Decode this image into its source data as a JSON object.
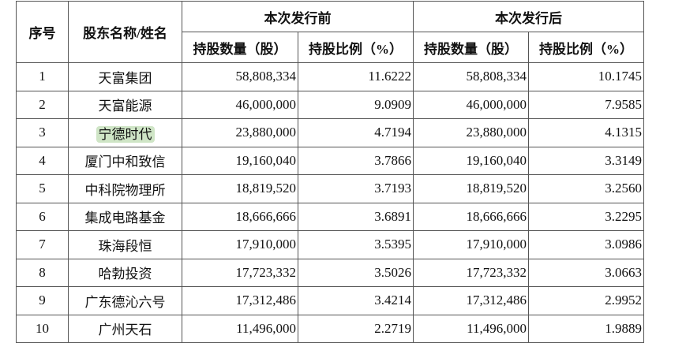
{
  "table": {
    "headers": {
      "seq": "序号",
      "name": "股东名称/姓名",
      "groups": [
        "本次发行前",
        "本次发行后"
      ],
      "sub": [
        "持股数量（股）",
        "持股比例（%）",
        "持股数量（股）",
        "持股比例（%）"
      ]
    },
    "rows": [
      [
        "1",
        "天富集团",
        "58,808,334",
        "11.6222",
        "58,808,334",
        "10.1745"
      ],
      [
        "2",
        "天富能源",
        "46,000,000",
        "9.0909",
        "46,000,000",
        "7.9585"
      ],
      [
        "3",
        "宁德时代",
        "23,880,000",
        "4.7194",
        "23,880,000",
        "4.1315"
      ],
      [
        "4",
        "厦门中和致信",
        "19,160,040",
        "3.7866",
        "19,160,040",
        "3.3149"
      ],
      [
        "5",
        "中科院物理所",
        "18,819,520",
        "3.7193",
        "18,819,520",
        "3.2560"
      ],
      [
        "6",
        "集成电路基金",
        "18,666,666",
        "3.6891",
        "18,666,666",
        "3.2295"
      ],
      [
        "7",
        "珠海段恒",
        "17,910,000",
        "3.5395",
        "17,910,000",
        "3.0986"
      ],
      [
        "8",
        "哈勃投资",
        "17,723,332",
        "3.5026",
        "17,723,332",
        "3.0663"
      ],
      [
        "9",
        "广东德沁六号",
        "17,312,486",
        "3.4214",
        "17,312,486",
        "2.9952"
      ],
      [
        "10",
        "广州天石",
        "11,496,000",
        "2.2719",
        "11,496,000",
        "1.9889"
      ]
    ]
  }
}
